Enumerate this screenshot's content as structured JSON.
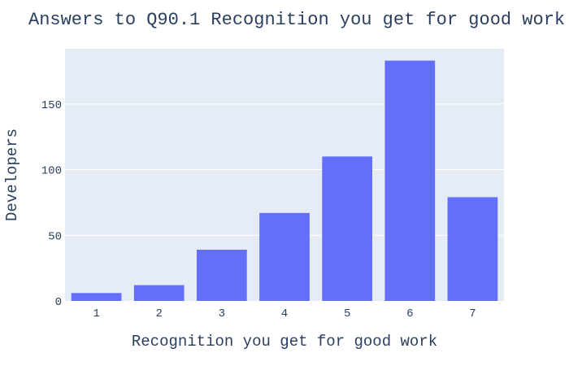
{
  "chart_data": {
    "type": "bar",
    "title": "Answers to Q90.1 Recognition you get for good work",
    "xlabel": "Recognition you get for good work",
    "ylabel": "Developers",
    "categories": [
      "1",
      "2",
      "3",
      "4",
      "5",
      "6",
      "7"
    ],
    "values": [
      6,
      12,
      39,
      67,
      110,
      183,
      79
    ],
    "ylim": [
      0,
      192
    ],
    "yticks": [
      0,
      50,
      100,
      150
    ],
    "grid": true,
    "legend": "none",
    "colors": {
      "bar": "#636efa",
      "plot_background": "#e5ecf6",
      "grid": "#ffffff",
      "text": "#2a3f5f"
    }
  }
}
